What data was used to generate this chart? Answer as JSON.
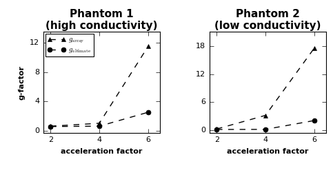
{
  "phantom1": {
    "title": "Phantom 1",
    "subtitle": "(high conductivity)",
    "x": [
      2,
      4,
      6
    ],
    "g_array": [
      0.6,
      1.0,
      11.5
    ],
    "g_ultimate": [
      0.55,
      0.6,
      2.5
    ],
    "ylim": [
      -0.3,
      13.5
    ],
    "yticks": [
      0,
      4,
      8,
      12
    ],
    "xlim": [
      1.7,
      6.5
    ],
    "xticks": [
      2,
      4,
      6
    ]
  },
  "phantom2": {
    "title": "Phantom 2",
    "subtitle": "(low conductivity)",
    "x": [
      2,
      4,
      6
    ],
    "g_array": [
      0.3,
      3.2,
      17.5
    ],
    "g_ultimate": [
      0.2,
      0.22,
      2.1
    ],
    "ylim": [
      -0.5,
      21
    ],
    "yticks": [
      0,
      6,
      12,
      18
    ],
    "xlim": [
      1.7,
      6.5
    ],
    "xticks": [
      2,
      4,
      6
    ]
  },
  "ylabel": "g-factor",
  "xlabel": "acceleration factor",
  "legend_label_array": "g",
  "legend_label_ultimate": "g",
  "line_color": "black",
  "array_marker": "^",
  "ultimate_marker": "o",
  "marker_size": 5,
  "linestyle": "--",
  "linewidth": 1.0,
  "title_fontsize": 11,
  "subtitle_fontsize": 9,
  "axis_label_fontsize": 8,
  "tick_fontsize": 8,
  "legend_fontsize": 7.5
}
